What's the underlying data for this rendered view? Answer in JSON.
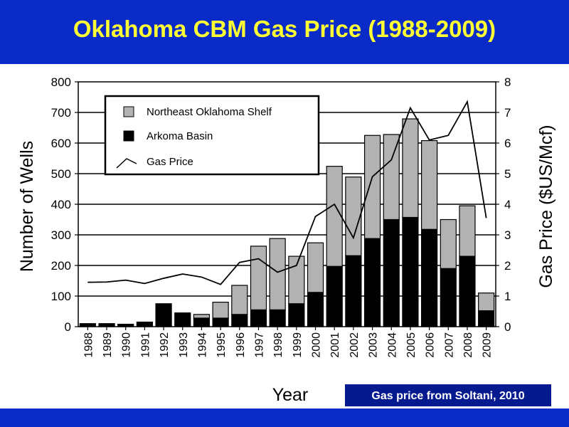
{
  "slide": {
    "title": "Oklahoma CBM Gas Price (1988-2009)",
    "source_note": "Gas price from Soltani, 2010",
    "band_color": "#0a2bc8",
    "title_color": "#ffff33"
  },
  "chart_data": {
    "type": "bar",
    "categories": [
      "1988",
      "1989",
      "1990",
      "1991",
      "1992",
      "1993",
      "1994",
      "1995",
      "1996",
      "1997",
      "1998",
      "1999",
      "2000",
      "2001",
      "2002",
      "2003",
      "2004",
      "2005",
      "2006",
      "2007",
      "2008",
      "2009"
    ],
    "series": [
      {
        "name": "Arkoma Basin",
        "kind": "bar",
        "stack": "wells",
        "color": "#000000",
        "values": [
          10,
          10,
          8,
          15,
          75,
          45,
          28,
          28,
          40,
          55,
          55,
          75,
          112,
          197,
          232,
          288,
          350,
          357,
          318,
          190,
          230,
          52
        ]
      },
      {
        "name": "Northeast Oklahoma Shelf",
        "kind": "bar",
        "stack": "wells",
        "color": "#b2b2b2",
        "values": [
          0,
          0,
          0,
          0,
          0,
          0,
          12,
          52,
          95,
          208,
          233,
          155,
          162,
          327,
          257,
          337,
          278,
          322,
          290,
          160,
          165,
          58
        ]
      },
      {
        "name": "Gas Price",
        "kind": "line",
        "axis": "right",
        "color": "#000000",
        "values": [
          1.45,
          1.46,
          1.52,
          1.41,
          1.58,
          1.72,
          1.62,
          1.38,
          2.1,
          2.22,
          1.78,
          2.0,
          3.6,
          4.0,
          2.9,
          4.9,
          5.45,
          7.15,
          6.1,
          6.25,
          7.35,
          3.55
        ]
      }
    ],
    "xlabel": "Year",
    "ylabel": "Number of Wells",
    "y2label": "Gas Price ($US/Mcf)",
    "ylim": [
      0,
      800
    ],
    "y2lim": [
      0,
      8
    ],
    "yticks": [
      0,
      100,
      200,
      300,
      400,
      500,
      600,
      700,
      800
    ],
    "y2ticks": [
      0,
      1,
      2,
      3,
      4,
      5,
      6,
      7,
      8
    ],
    "grid": true,
    "legend": {
      "placement": "top-left",
      "entries": [
        "Northeast Oklahoma Shelf",
        "Arkoma Basin",
        "Gas Price"
      ]
    }
  }
}
